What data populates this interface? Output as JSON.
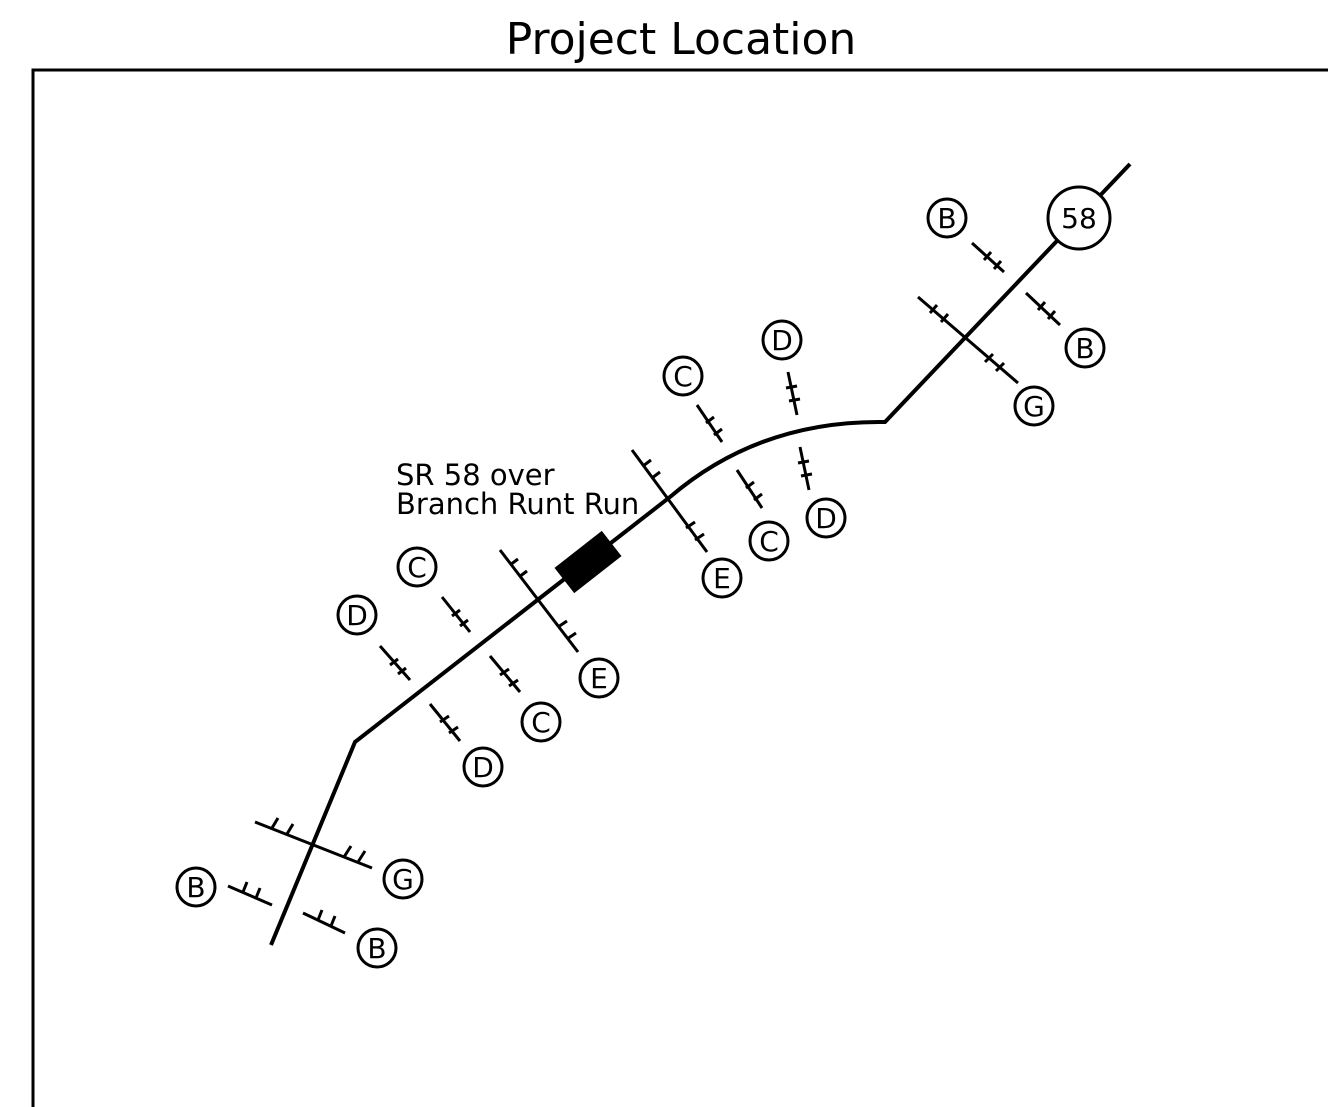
{
  "title": "Project Location",
  "route_shield": "58",
  "project_label": {
    "line1": "SR 58 over",
    "line2": "Branch Runt Run"
  },
  "crossroad_labels": {
    "b1": "B",
    "b2": "B",
    "g1": "G",
    "d1": "D",
    "d2": "D",
    "c1": "C",
    "c2": "C",
    "e1": "E",
    "e2": "E",
    "c3": "C",
    "c4": "C",
    "d3": "D",
    "d4": "D",
    "g2": "G",
    "b3": "B",
    "b4": "B"
  },
  "colors": {
    "line": "#000000",
    "background": "#ffffff",
    "bridge": "#000000"
  }
}
